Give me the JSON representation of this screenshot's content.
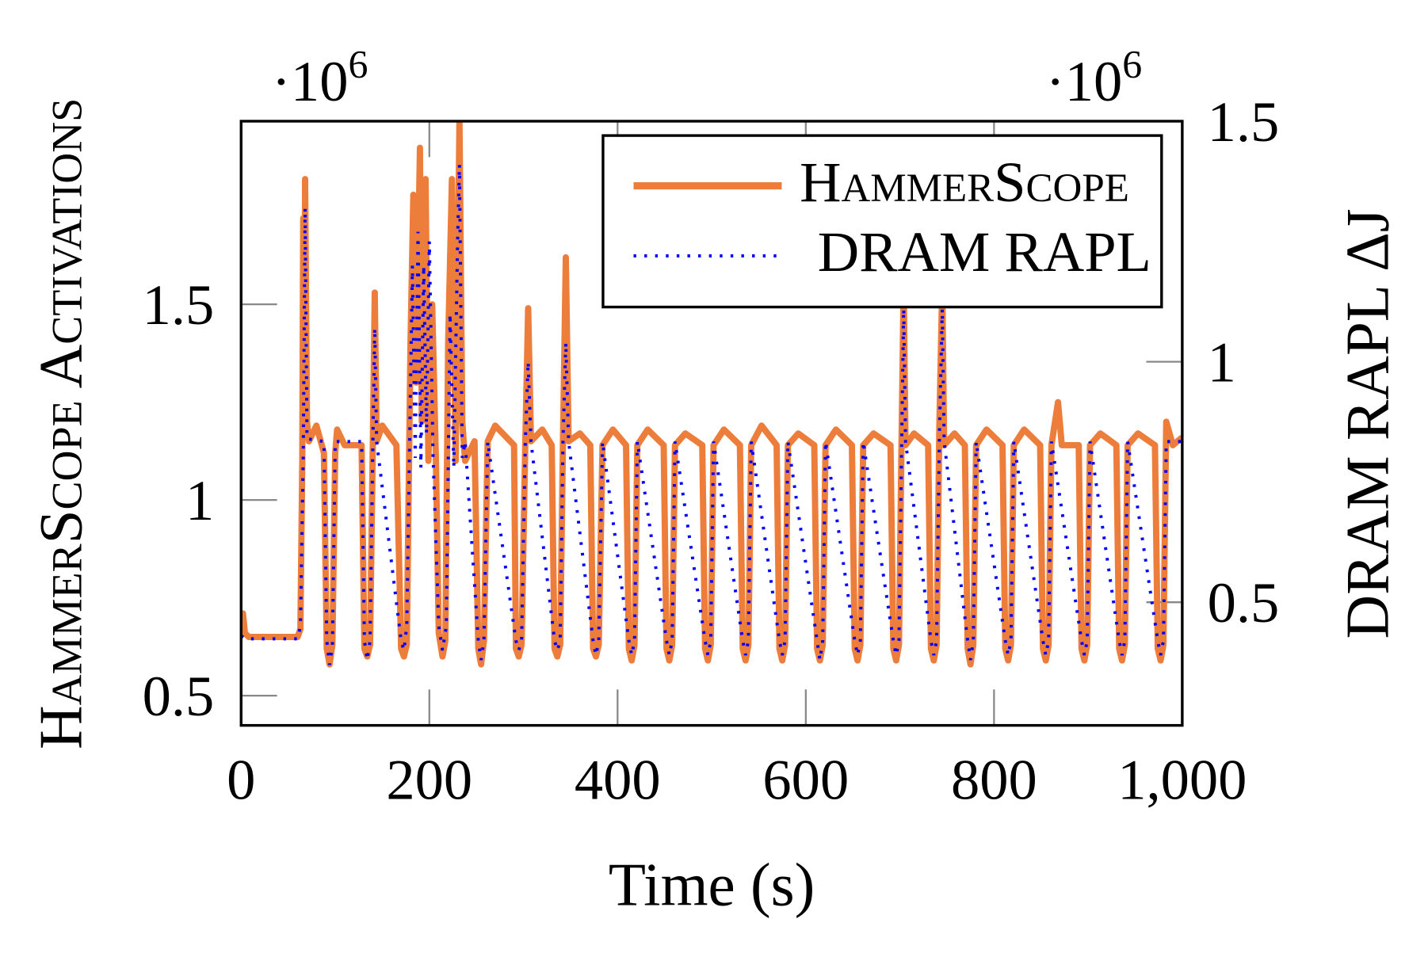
{
  "chart_data": {
    "type": "line",
    "xlabel": "Time (s)",
    "ylabel_left": "HammerScope Activations",
    "ylabel_right": "DRAM RAPL ΔJ",
    "left_multiplier": "·10",
    "left_multiplier_exp": "6",
    "right_multiplier": "·10",
    "right_multiplier_exp": "6",
    "xlim": [
      0,
      1000
    ],
    "ylim_left": [
      0.424,
      1.968
    ],
    "ylim_right": [
      0.244,
      1.5
    ],
    "xticks": [
      0,
      200,
      400,
      600,
      800,
      1000
    ],
    "xtick_labels": [
      "0",
      "200",
      "400",
      "600",
      "800",
      "1,000"
    ],
    "yticks_left": [
      0.5,
      1,
      1.5
    ],
    "ytick_labels_left": [
      "0.5",
      "1",
      "1.5"
    ],
    "yticks_right": [
      0.5,
      1,
      1.5
    ],
    "ytick_labels_right": [
      "0.5",
      "1",
      "1.5"
    ],
    "grid": false,
    "legend_position": "top-right",
    "colors": {
      "hammerscope": "#ED7D3A",
      "dram_rapl": "#0000FF"
    },
    "series": [
      {
        "name": "HammerScope",
        "axis": "left",
        "style": "solid",
        "points": [
          [
            0,
            0.69
          ],
          [
            2,
            0.71
          ],
          [
            4,
            0.66
          ],
          [
            8,
            0.65
          ],
          [
            60,
            0.65
          ],
          [
            63,
            0.67
          ],
          [
            65,
            1.1
          ],
          [
            66,
            1.72
          ],
          [
            67,
            1.2
          ],
          [
            68,
            1.82
          ],
          [
            70,
            1.2
          ],
          [
            72,
            1.15
          ],
          [
            80,
            1.19
          ],
          [
            88,
            1.12
          ],
          [
            91,
            0.62
          ],
          [
            94,
            0.58
          ],
          [
            97,
            0.63
          ],
          [
            100,
            1.12
          ],
          [
            102,
            1.18
          ],
          [
            110,
            1.14
          ],
          [
            128,
            1.14
          ],
          [
            131,
            0.62
          ],
          [
            134,
            0.6
          ],
          [
            137,
            0.63
          ],
          [
            140,
            1.15
          ],
          [
            142,
            1.53
          ],
          [
            144,
            1.15
          ],
          [
            150,
            1.19
          ],
          [
            165,
            1.14
          ],
          [
            170,
            0.62
          ],
          [
            173,
            0.6
          ],
          [
            176,
            0.63
          ],
          [
            180,
            1.4
          ],
          [
            183,
            1.78
          ],
          [
            186,
            1.3
          ],
          [
            190,
            1.9
          ],
          [
            192,
            1.2
          ],
          [
            196,
            1.82
          ],
          [
            199,
            1.1
          ],
          [
            203,
            1.5
          ],
          [
            207,
            1.1
          ],
          [
            210,
            0.66
          ],
          [
            214,
            0.6
          ],
          [
            217,
            0.64
          ],
          [
            220,
            1.4
          ],
          [
            224,
            1.82
          ],
          [
            228,
            1.1
          ],
          [
            232,
            1.97
          ],
          [
            235,
            1.2
          ],
          [
            238,
            1.1
          ],
          [
            248,
            1.15
          ],
          [
            252,
            0.62
          ],
          [
            255,
            0.58
          ],
          [
            258,
            0.64
          ],
          [
            262,
            1.15
          ],
          [
            270,
            1.19
          ],
          [
            290,
            1.14
          ],
          [
            292,
            0.62
          ],
          [
            295,
            0.6
          ],
          [
            298,
            0.63
          ],
          [
            302,
            1.15
          ],
          [
            305,
            1.49
          ],
          [
            308,
            1.15
          ],
          [
            320,
            1.18
          ],
          [
            330,
            1.14
          ],
          [
            333,
            0.62
          ],
          [
            336,
            0.6
          ],
          [
            339,
            0.63
          ],
          [
            342,
            1.15
          ],
          [
            345,
            1.62
          ],
          [
            348,
            1.15
          ],
          [
            360,
            1.17
          ],
          [
            371,
            1.14
          ],
          [
            374,
            0.62
          ],
          [
            377,
            0.6
          ],
          [
            380,
            0.63
          ],
          [
            384,
            1.14
          ],
          [
            395,
            1.18
          ],
          [
            409,
            1.14
          ],
          [
            412,
            0.62
          ],
          [
            415,
            0.59
          ],
          [
            418,
            0.63
          ],
          [
            421,
            1.14
          ],
          [
            432,
            1.18
          ],
          [
            449,
            1.14
          ],
          [
            452,
            0.62
          ],
          [
            455,
            0.59
          ],
          [
            458,
            0.63
          ],
          [
            461,
            1.14
          ],
          [
            472,
            1.17
          ],
          [
            490,
            1.14
          ],
          [
            493,
            0.62
          ],
          [
            496,
            0.59
          ],
          [
            499,
            0.63
          ],
          [
            502,
            1.14
          ],
          [
            513,
            1.18
          ],
          [
            530,
            1.14
          ],
          [
            533,
            0.62
          ],
          [
            536,
            0.59
          ],
          [
            539,
            0.63
          ],
          [
            542,
            1.14
          ],
          [
            553,
            1.19
          ],
          [
            569,
            1.14
          ],
          [
            572,
            0.62
          ],
          [
            575,
            0.59
          ],
          [
            578,
            0.63
          ],
          [
            581,
            1.14
          ],
          [
            592,
            1.17
          ],
          [
            609,
            1.14
          ],
          [
            612,
            0.62
          ],
          [
            615,
            0.59
          ],
          [
            618,
            0.63
          ],
          [
            621,
            1.14
          ],
          [
            632,
            1.18
          ],
          [
            649,
            1.14
          ],
          [
            652,
            0.62
          ],
          [
            655,
            0.59
          ],
          [
            658,
            0.63
          ],
          [
            661,
            1.14
          ],
          [
            672,
            1.17
          ],
          [
            690,
            1.14
          ],
          [
            693,
            0.62
          ],
          [
            696,
            0.59
          ],
          [
            699,
            0.63
          ],
          [
            702,
            1.2
          ],
          [
            704,
            1.55
          ],
          [
            706,
            1.14
          ],
          [
            715,
            1.17
          ],
          [
            730,
            1.14
          ],
          [
            733,
            0.62
          ],
          [
            736,
            0.59
          ],
          [
            739,
            0.63
          ],
          [
            742,
            1.2
          ],
          [
            745,
            1.55
          ],
          [
            747,
            1.14
          ],
          [
            758,
            1.17
          ],
          [
            769,
            1.14
          ],
          [
            772,
            0.62
          ],
          [
            775,
            0.58
          ],
          [
            778,
            0.63
          ],
          [
            781,
            1.14
          ],
          [
            792,
            1.18
          ],
          [
            809,
            1.14
          ],
          [
            812,
            0.62
          ],
          [
            815,
            0.59
          ],
          [
            818,
            0.63
          ],
          [
            821,
            1.14
          ],
          [
            832,
            1.18
          ],
          [
            849,
            1.14
          ],
          [
            852,
            0.62
          ],
          [
            855,
            0.59
          ],
          [
            858,
            0.63
          ],
          [
            861,
            1.14
          ],
          [
            868,
            1.25
          ],
          [
            872,
            1.14
          ],
          [
            890,
            1.14
          ],
          [
            893,
            0.62
          ],
          [
            896,
            0.59
          ],
          [
            899,
            0.63
          ],
          [
            902,
            1.14
          ],
          [
            913,
            1.17
          ],
          [
            930,
            1.14
          ],
          [
            933,
            0.62
          ],
          [
            936,
            0.59
          ],
          [
            939,
            0.63
          ],
          [
            942,
            1.14
          ],
          [
            953,
            1.17
          ],
          [
            971,
            1.14
          ],
          [
            974,
            0.62
          ],
          [
            977,
            0.59
          ],
          [
            980,
            0.63
          ],
          [
            983,
            1.2
          ],
          [
            990,
            1.14
          ],
          [
            1000,
            1.16
          ]
        ]
      },
      {
        "name": "DRAM RAPL",
        "axis": "right",
        "style": "dotted",
        "points": [
          [
            0,
            0.43
          ],
          [
            5,
            0.424
          ],
          [
            60,
            0.424
          ],
          [
            63,
            0.45
          ],
          [
            66,
            0.8
          ],
          [
            68,
            1.32
          ],
          [
            70,
            0.84
          ],
          [
            88,
            0.834
          ],
          [
            91,
            0.42
          ],
          [
            94,
            0.37
          ],
          [
            97,
            0.41
          ],
          [
            100,
            0.834
          ],
          [
            128,
            0.834
          ],
          [
            131,
            0.42
          ],
          [
            134,
            0.38
          ],
          [
            137,
            0.42
          ],
          [
            140,
            0.834
          ],
          [
            142,
            1.07
          ],
          [
            144,
            0.834
          ],
          [
            170,
            0.42
          ],
          [
            173,
            0.4
          ],
          [
            176,
            0.45
          ],
          [
            182,
            1.2
          ],
          [
            185,
            0.8
          ],
          [
            188,
            1.27
          ],
          [
            191,
            0.78
          ],
          [
            194,
            1.2
          ],
          [
            197,
            0.85
          ],
          [
            200,
            1.25
          ],
          [
            204,
            0.8
          ],
          [
            210,
            0.45
          ],
          [
            214,
            0.4
          ],
          [
            218,
            0.45
          ],
          [
            222,
            1.1
          ],
          [
            226,
            0.78
          ],
          [
            230,
            1.25
          ],
          [
            232,
            1.41
          ],
          [
            235,
            0.8
          ],
          [
            238,
            0.834
          ],
          [
            252,
            0.42
          ],
          [
            255,
            0.38
          ],
          [
            258,
            0.42
          ],
          [
            262,
            0.834
          ],
          [
            292,
            0.42
          ],
          [
            295,
            0.4
          ],
          [
            298,
            0.42
          ],
          [
            302,
            0.834
          ],
          [
            305,
            1.0
          ],
          [
            308,
            0.834
          ],
          [
            333,
            0.42
          ],
          [
            336,
            0.4
          ],
          [
            339,
            0.42
          ],
          [
            342,
            0.834
          ],
          [
            345,
            1.04
          ],
          [
            348,
            0.834
          ],
          [
            374,
            0.42
          ],
          [
            377,
            0.39
          ],
          [
            380,
            0.42
          ],
          [
            384,
            0.834
          ],
          [
            412,
            0.42
          ],
          [
            415,
            0.39
          ],
          [
            418,
            0.42
          ],
          [
            421,
            0.834
          ],
          [
            452,
            0.42
          ],
          [
            455,
            0.39
          ],
          [
            458,
            0.42
          ],
          [
            461,
            0.834
          ],
          [
            493,
            0.42
          ],
          [
            496,
            0.39
          ],
          [
            499,
            0.42
          ],
          [
            502,
            0.834
          ],
          [
            533,
            0.42
          ],
          [
            536,
            0.39
          ],
          [
            539,
            0.42
          ],
          [
            542,
            0.834
          ],
          [
            572,
            0.42
          ],
          [
            575,
            0.39
          ],
          [
            578,
            0.42
          ],
          [
            581,
            0.834
          ],
          [
            612,
            0.42
          ],
          [
            615,
            0.38
          ],
          [
            618,
            0.42
          ],
          [
            621,
            0.834
          ],
          [
            652,
            0.42
          ],
          [
            655,
            0.39
          ],
          [
            658,
            0.42
          ],
          [
            661,
            0.834
          ],
          [
            693,
            0.42
          ],
          [
            696,
            0.39
          ],
          [
            699,
            0.42
          ],
          [
            702,
            0.85
          ],
          [
            704,
            1.11
          ],
          [
            706,
            0.834
          ],
          [
            733,
            0.42
          ],
          [
            736,
            0.39
          ],
          [
            739,
            0.42
          ],
          [
            742,
            0.85
          ],
          [
            745,
            1.11
          ],
          [
            747,
            0.834
          ],
          [
            772,
            0.42
          ],
          [
            775,
            0.38
          ],
          [
            778,
            0.42
          ],
          [
            781,
            0.834
          ],
          [
            812,
            0.42
          ],
          [
            815,
            0.39
          ],
          [
            818,
            0.42
          ],
          [
            821,
            0.834
          ],
          [
            852,
            0.42
          ],
          [
            855,
            0.39
          ],
          [
            858,
            0.42
          ],
          [
            861,
            0.834
          ],
          [
            893,
            0.42
          ],
          [
            896,
            0.39
          ],
          [
            899,
            0.42
          ],
          [
            902,
            0.834
          ],
          [
            933,
            0.42
          ],
          [
            936,
            0.39
          ],
          [
            939,
            0.42
          ],
          [
            942,
            0.834
          ],
          [
            974,
            0.42
          ],
          [
            977,
            0.39
          ],
          [
            980,
            0.42
          ],
          [
            983,
            0.834
          ],
          [
            1000,
            0.834
          ]
        ]
      }
    ]
  }
}
